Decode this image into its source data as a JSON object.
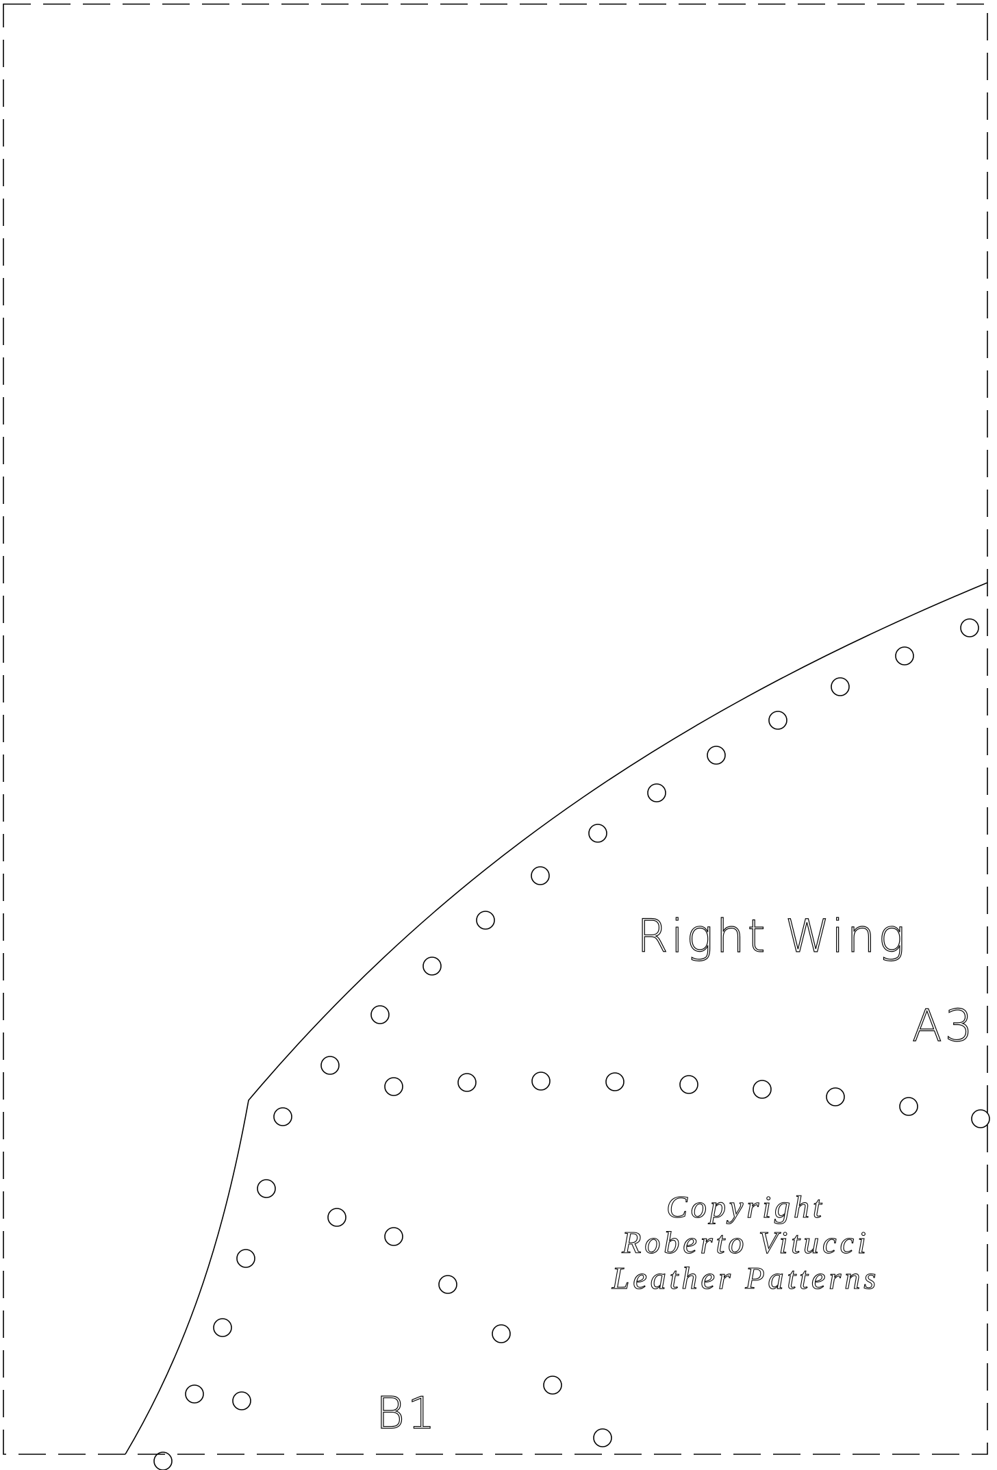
{
  "pattern": {
    "piece_name": "Right Wing",
    "piece_code": "A3",
    "adjoining_piece_code": "B1",
    "copyright": {
      "line1": "Copyright",
      "line2": "Roberto Vitucci",
      "line3": "Leather Patterns"
    }
  },
  "colors": {
    "background": "#ffffff",
    "line": "#000000"
  }
}
